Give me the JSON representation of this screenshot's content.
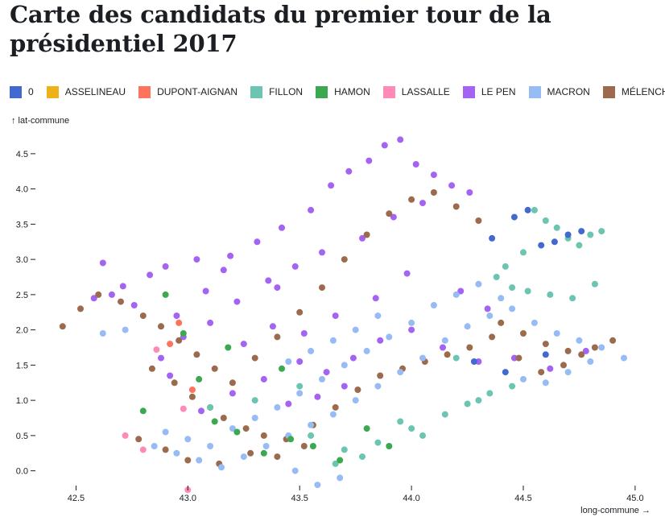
{
  "chart_data": {
    "type": "scatter",
    "title": "Carte des candidats du premier tour de la présidentiel 2017",
    "xlabel": "long-commune →",
    "ylabel": "↑ lat-commune",
    "xlim": [
      42.34,
      45.04
    ],
    "ylim": [
      -0.29,
      4.83
    ],
    "x_ticks": [
      {
        "value": 42.5,
        "label": "42.5"
      },
      {
        "value": 43.0,
        "label": "43.0"
      },
      {
        "value": 43.5,
        "label": "43.5"
      },
      {
        "value": 44.0,
        "label": "44.0"
      },
      {
        "value": 44.5,
        "label": "44.5"
      },
      {
        "value": 45.0,
        "label": "45.0"
      }
    ],
    "y_ticks": [
      {
        "value": 0.0,
        "label": "0.0"
      },
      {
        "value": 0.5,
        "label": "0.5"
      },
      {
        "value": 1.0,
        "label": "1.0"
      },
      {
        "value": 1.5,
        "label": "1.5"
      },
      {
        "value": 2.0,
        "label": "2.0"
      },
      {
        "value": 2.5,
        "label": "2.5"
      },
      {
        "value": 3.0,
        "label": "3.0"
      },
      {
        "value": 3.5,
        "label": "3.5"
      },
      {
        "value": 4.0,
        "label": "4.0"
      },
      {
        "value": 4.5,
        "label": "4.5"
      }
    ],
    "legend": [
      {
        "label": "0",
        "color": "#4269d0"
      },
      {
        "label": "ASSELINEAU",
        "color": "#efb118"
      },
      {
        "label": "DUPONT-AIGNAN",
        "color": "#ff725c"
      },
      {
        "label": "FILLON",
        "color": "#6cc5b0"
      },
      {
        "label": "HAMON",
        "color": "#3ca951"
      },
      {
        "label": "LASSALLE",
        "color": "#ff8ab7"
      },
      {
        "label": "LE PEN",
        "color": "#a463f2"
      },
      {
        "label": "MACRON",
        "color": "#97bbf5"
      },
      {
        "label": "MÉLENCHON",
        "color": "#9c6b4e"
      }
    ],
    "series": [
      {
        "name": "LE PEN",
        "x": [
          42.62,
          42.71,
          42.83,
          42.95,
          43.08,
          43.19,
          43.31,
          43.42,
          43.55,
          43.64,
          43.72,
          43.81,
          43.88,
          43.95,
          44.02,
          44.1,
          44.18,
          44.26,
          44.05,
          43.92,
          43.78,
          43.6,
          43.48,
          43.36,
          43.22,
          43.1,
          42.98,
          42.88,
          42.76,
          42.66,
          43.25,
          43.38,
          43.52,
          43.66,
          43.84,
          44.0,
          44.14,
          44.3,
          44.46,
          44.62,
          44.78,
          43.7,
          43.58,
          43.45,
          43.34,
          43.2,
          43.06,
          42.92,
          44.34,
          44.22,
          43.98,
          43.86,
          43.74,
          43.62,
          43.5,
          43.4,
          43.16,
          43.04,
          42.9,
          42.58
        ],
        "y": [
          2.95,
          2.62,
          2.78,
          2.2,
          2.55,
          3.05,
          3.25,
          3.45,
          3.7,
          4.05,
          4.25,
          4.4,
          4.62,
          4.7,
          4.35,
          4.2,
          4.05,
          3.95,
          3.8,
          3.6,
          3.3,
          3.1,
          2.9,
          2.7,
          2.4,
          2.1,
          1.9,
          1.6,
          2.35,
          2.5,
          1.8,
          2.05,
          1.95,
          2.2,
          2.45,
          2.0,
          1.75,
          1.55,
          1.6,
          1.45,
          1.7,
          1.2,
          1.05,
          0.95,
          1.3,
          1.1,
          0.85,
          1.35,
          2.3,
          2.55,
          2.8,
          1.85,
          1.6,
          1.4,
          1.55,
          2.6,
          2.85,
          3.0,
          2.9,
          2.45
        ]
      },
      {
        "name": "MÉLENCHON",
        "x": [
          42.44,
          42.52,
          42.6,
          42.7,
          42.8,
          42.88,
          42.96,
          43.04,
          43.12,
          43.2,
          43.3,
          43.4,
          43.5,
          43.6,
          43.7,
          43.8,
          43.9,
          44.0,
          44.1,
          44.2,
          44.3,
          44.4,
          44.5,
          44.6,
          44.7,
          44.82,
          44.9,
          42.84,
          42.94,
          43.02,
          43.1,
          43.16,
          43.26,
          43.34,
          43.44,
          43.56,
          43.66,
          43.76,
          43.86,
          43.96,
          44.06,
          44.16,
          44.26,
          44.36,
          44.48,
          44.58,
          44.68,
          44.76,
          42.78,
          42.9,
          43.0,
          43.14,
          43.28,
          43.4,
          43.52
        ],
        "y": [
          2.05,
          2.3,
          2.5,
          2.4,
          2.2,
          2.05,
          1.85,
          1.65,
          1.45,
          1.25,
          1.6,
          1.9,
          2.25,
          2.6,
          3.0,
          3.35,
          3.65,
          3.85,
          3.95,
          3.75,
          3.55,
          2.1,
          1.95,
          1.8,
          1.7,
          1.75,
          1.85,
          1.45,
          1.25,
          1.05,
          0.9,
          0.75,
          0.6,
          0.5,
          0.45,
          0.65,
          0.9,
          1.15,
          1.35,
          1.45,
          1.55,
          1.65,
          1.75,
          1.9,
          1.6,
          1.4,
          1.5,
          1.65,
          0.45,
          0.3,
          0.15,
          0.1,
          0.25,
          0.2,
          0.35
        ]
      },
      {
        "name": "MACRON",
        "x": [
          42.85,
          42.95,
          43.05,
          43.15,
          43.25,
          43.35,
          43.45,
          43.55,
          43.65,
          43.75,
          43.85,
          43.95,
          44.05,
          44.15,
          44.25,
          44.35,
          44.45,
          44.55,
          44.65,
          44.75,
          44.85,
          44.95,
          42.9,
          43.0,
          43.1,
          43.2,
          43.3,
          43.4,
          43.5,
          43.6,
          43.7,
          43.8,
          43.9,
          44.0,
          43.45,
          43.55,
          43.65,
          43.75,
          43.85,
          44.1,
          44.2,
          44.3,
          44.4,
          44.5,
          44.6,
          44.7,
          44.8,
          42.62,
          42.72,
          43.58,
          43.68,
          43.48
        ],
        "y": [
          0.35,
          0.25,
          0.15,
          0.05,
          0.2,
          0.35,
          0.5,
          0.65,
          0.8,
          1.0,
          1.2,
          1.4,
          1.6,
          1.85,
          2.05,
          2.2,
          2.3,
          2.1,
          1.95,
          1.85,
          1.75,
          1.6,
          0.55,
          0.45,
          0.35,
          0.6,
          0.75,
          0.9,
          1.1,
          1.3,
          1.5,
          1.7,
          1.9,
          2.1,
          1.55,
          1.7,
          1.85,
          2.0,
          2.2,
          2.35,
          2.5,
          2.65,
          2.45,
          1.3,
          1.25,
          1.4,
          1.55,
          1.95,
          2.0,
          -0.2,
          -0.1,
          0.0
        ]
      },
      {
        "name": "FILLON",
        "x": [
          43.55,
          43.7,
          43.85,
          44.0,
          44.15,
          44.3,
          44.45,
          44.55,
          44.6,
          44.65,
          44.7,
          44.75,
          44.8,
          44.85,
          44.5,
          44.42,
          44.38,
          44.45,
          44.52,
          44.62,
          44.72,
          44.82,
          43.95,
          44.05,
          43.78,
          43.66,
          44.35,
          44.25,
          44.2,
          43.5,
          43.3,
          43.1
        ],
        "y": [
          0.5,
          0.3,
          0.4,
          0.6,
          0.8,
          1.0,
          1.2,
          3.7,
          3.55,
          3.45,
          3.3,
          3.2,
          3.35,
          3.4,
          3.1,
          2.9,
          2.75,
          2.6,
          2.55,
          2.5,
          2.45,
          2.65,
          0.7,
          0.5,
          0.2,
          0.1,
          1.1,
          0.95,
          1.6,
          1.2,
          1.0,
          0.9
        ]
      },
      {
        "name": "0",
        "x": [
          44.58,
          44.64,
          44.7,
          44.76,
          44.46,
          44.52,
          44.6,
          44.42,
          44.28,
          44.36
        ],
        "y": [
          3.2,
          3.25,
          3.35,
          3.4,
          3.6,
          3.7,
          1.65,
          1.4,
          1.55,
          3.3
        ]
      },
      {
        "name": "HAMON",
        "x": [
          42.9,
          42.98,
          43.05,
          43.12,
          43.22,
          43.34,
          43.46,
          43.56,
          43.68,
          43.8,
          43.9,
          42.8,
          43.18,
          43.42
        ],
        "y": [
          2.5,
          1.95,
          1.3,
          0.7,
          0.55,
          0.25,
          0.45,
          0.35,
          0.15,
          0.6,
          0.35,
          0.85,
          1.75,
          1.45
        ]
      },
      {
        "name": "LASSALLE",
        "x": [
          42.8,
          42.86,
          42.98,
          43.0,
          42.72
        ],
        "y": [
          0.3,
          1.72,
          0.88,
          -0.27,
          0.5
        ]
      },
      {
        "name": "DUPONT-AIGNAN",
        "x": [
          42.92,
          43.02,
          42.96
        ],
        "y": [
          1.8,
          1.15,
          2.1
        ]
      }
    ]
  }
}
